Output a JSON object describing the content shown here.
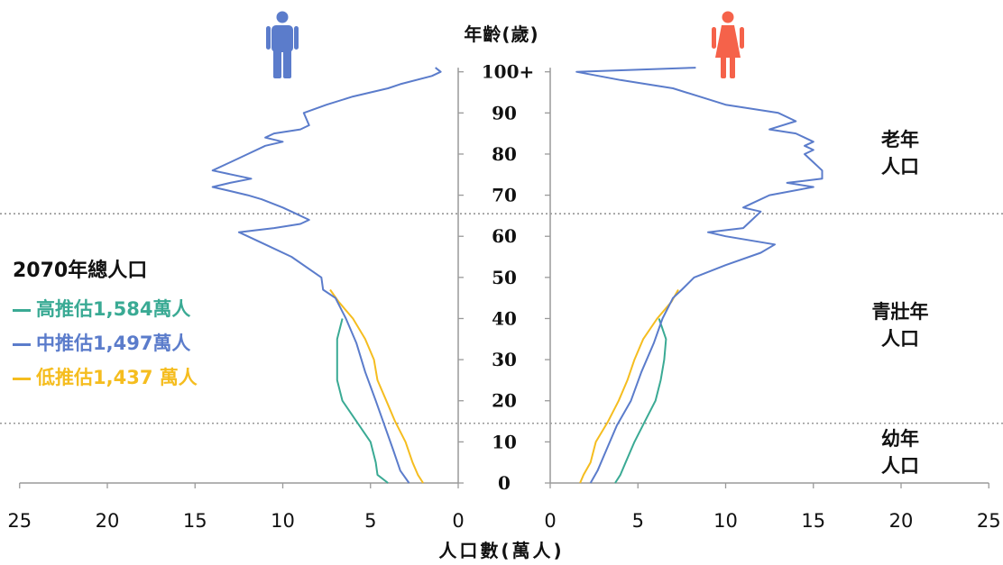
{
  "y_axis_title": "年齡(歲)",
  "x_axis_title": "人口數(萬人)",
  "zones": {
    "elderly": [
      "老年",
      "人口"
    ],
    "working": [
      "青壯年",
      "人口"
    ],
    "youth": [
      "幼年",
      "人口"
    ]
  },
  "legend": {
    "title": "2070年總人口",
    "items": [
      {
        "label": "高推估1,584萬人",
        "color": "#3aaa94"
      },
      {
        "label": "中推估1,497萬人",
        "color": "#5b7ccb"
      },
      {
        "label": "低推估1,437 萬人",
        "color": "#f5bd1f"
      }
    ]
  },
  "colors": {
    "male_icon": "#5b7ccb",
    "female_icon": "#f5624a",
    "axis": "#9a9a9a",
    "divider": "#777777"
  },
  "icons": {
    "male": "male-person-icon",
    "female": "female-person-icon"
  },
  "chart_data": {
    "type": "line",
    "layout": "population-pyramid",
    "y_axis": {
      "title": "年齡(歲)",
      "ticks": [
        0,
        10,
        20,
        30,
        40,
        50,
        60,
        70,
        80,
        90,
        100
      ],
      "tick_labels": [
        "0",
        "10",
        "20",
        "30",
        "40",
        "50",
        "60",
        "70",
        "80",
        "90",
        "100+"
      ],
      "range": [
        0,
        101
      ]
    },
    "x_axis": {
      "title": "人口數(萬人)",
      "left_ticks": [
        25,
        20,
        15,
        10,
        5,
        0
      ],
      "right_ticks": [
        0,
        5,
        10,
        15,
        20,
        25
      ],
      "range": [
        0,
        25
      ]
    },
    "divider_ages": [
      14.5,
      65.5
    ],
    "series": [
      {
        "name": "高推估1,584萬人",
        "color": "#3aaa94",
        "male": [
          [
            0,
            4.0
          ],
          [
            2,
            4.6
          ],
          [
            5,
            4.7
          ],
          [
            10,
            5.0
          ],
          [
            15,
            5.8
          ],
          [
            20,
            6.6
          ],
          [
            25,
            6.9
          ],
          [
            30,
            6.9
          ],
          [
            35,
            6.9
          ],
          [
            40,
            6.6
          ]
        ],
        "female": [
          [
            0,
            3.7
          ],
          [
            2,
            4.0
          ],
          [
            5,
            4.3
          ],
          [
            10,
            4.8
          ],
          [
            15,
            5.4
          ],
          [
            20,
            6.0
          ],
          [
            25,
            6.3
          ],
          [
            30,
            6.5
          ],
          [
            35,
            6.6
          ],
          [
            40,
            6.2
          ]
        ]
      },
      {
        "name": "中推估1,497萬人",
        "color": "#5b7ccb",
        "male": [
          [
            0,
            2.8
          ],
          [
            3,
            3.3
          ],
          [
            8,
            3.7
          ],
          [
            14,
            4.2
          ],
          [
            20,
            4.7
          ],
          [
            27,
            5.3
          ],
          [
            34,
            5.8
          ],
          [
            40,
            6.4
          ],
          [
            45,
            7.0
          ],
          [
            47,
            7.7
          ],
          [
            50,
            7.8
          ],
          [
            55,
            9.5
          ],
          [
            58,
            11.0
          ],
          [
            60,
            12.0
          ],
          [
            61,
            12.5
          ],
          [
            62,
            10.5
          ],
          [
            63,
            9.0
          ],
          [
            64,
            8.5
          ],
          [
            66,
            9.5
          ],
          [
            67,
            10.0
          ],
          [
            69,
            11.2
          ],
          [
            70,
            12.0
          ],
          [
            71,
            13.0
          ],
          [
            72,
            14.0
          ],
          [
            73,
            13.0
          ],
          [
            74,
            11.8
          ],
          [
            76,
            14.0
          ],
          [
            78,
            13.0
          ],
          [
            80,
            12.0
          ],
          [
            82,
            11.0
          ],
          [
            83,
            10.0
          ],
          [
            84,
            11.0
          ],
          [
            85,
            10.5
          ],
          [
            86,
            9.0
          ],
          [
            87,
            8.5
          ],
          [
            90,
            8.8
          ],
          [
            92,
            7.5
          ],
          [
            94,
            6.0
          ],
          [
            96,
            4.0
          ],
          [
            97,
            3.3
          ],
          [
            99,
            1.5
          ],
          [
            100,
            1.0
          ],
          [
            101,
            1.3
          ]
        ],
        "female": [
          [
            0,
            2.3
          ],
          [
            3,
            2.7
          ],
          [
            8,
            3.2
          ],
          [
            14,
            3.8
          ],
          [
            20,
            4.6
          ],
          [
            27,
            5.2
          ],
          [
            34,
            5.9
          ],
          [
            40,
            6.4
          ],
          [
            45,
            7.0
          ],
          [
            47,
            7.5
          ],
          [
            50,
            8.2
          ],
          [
            53,
            10.0
          ],
          [
            56,
            12.0
          ],
          [
            58,
            12.8
          ],
          [
            60,
            10.0
          ],
          [
            61,
            9.0
          ],
          [
            62,
            11.0
          ],
          [
            64,
            11.5
          ],
          [
            66,
            12.0
          ],
          [
            67,
            11.0
          ],
          [
            68,
            11.5
          ],
          [
            70,
            12.5
          ],
          [
            72,
            15.0
          ],
          [
            73,
            13.5
          ],
          [
            74,
            15.5
          ],
          [
            76,
            15.5
          ],
          [
            78,
            15.0
          ],
          [
            80,
            14.5
          ],
          [
            81,
            15.0
          ],
          [
            82,
            14.5
          ],
          [
            83,
            15.0
          ],
          [
            85,
            14.0
          ],
          [
            86,
            12.5
          ],
          [
            88,
            14.0
          ],
          [
            90,
            13.0
          ],
          [
            92,
            10.0
          ],
          [
            94,
            8.5
          ],
          [
            96,
            7.0
          ],
          [
            98,
            4.0
          ],
          [
            100,
            1.5
          ],
          [
            101,
            8.3
          ]
        ]
      },
      {
        "name": "低推估1,437 萬人",
        "color": "#f5bd1f",
        "male": [
          [
            0,
            2.0
          ],
          [
            2,
            2.3
          ],
          [
            5,
            2.6
          ],
          [
            10,
            3.0
          ],
          [
            15,
            3.6
          ],
          [
            20,
            4.1
          ],
          [
            25,
            4.6
          ],
          [
            30,
            4.8
          ],
          [
            35,
            5.3
          ],
          [
            40,
            6.0
          ],
          [
            44,
            6.8
          ],
          [
            47,
            7.3
          ]
        ],
        "female": [
          [
            0,
            1.7
          ],
          [
            2,
            1.9
          ],
          [
            5,
            2.3
          ],
          [
            10,
            2.6
          ],
          [
            15,
            3.3
          ],
          [
            20,
            3.9
          ],
          [
            25,
            4.4
          ],
          [
            30,
            4.8
          ],
          [
            35,
            5.3
          ],
          [
            40,
            6.1
          ],
          [
            44,
            6.9
          ],
          [
            47,
            7.3
          ]
        ]
      }
    ]
  }
}
